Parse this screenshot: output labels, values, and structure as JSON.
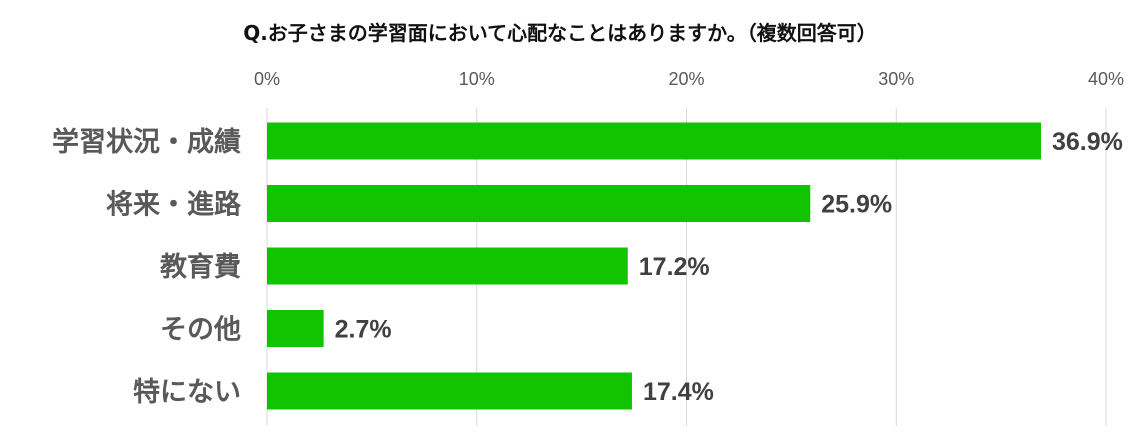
{
  "chart_data": {
    "type": "bar",
    "orientation": "horizontal",
    "title": "Q.お子さまの学習面において心配なことはありますか。（複数回答可）",
    "categories": [
      "学習状況・成績",
      "将来・進路",
      "教育費",
      "その他",
      "特にない"
    ],
    "values": [
      36.9,
      25.9,
      17.2,
      2.7,
      17.4
    ],
    "value_labels": [
      "36.9%",
      "25.9%",
      "17.2%",
      "2.7%",
      "17.4%"
    ],
    "xlim": [
      0,
      40
    ],
    "x_ticks": [
      0,
      10,
      20,
      30,
      40
    ],
    "x_tick_labels": [
      "0%",
      "10%",
      "20%",
      "30%",
      "40%"
    ],
    "x_axis_position": "top",
    "grid": true,
    "legend": "none",
    "bar_color": "#12c400",
    "grid_color": "#d9d9d9"
  }
}
